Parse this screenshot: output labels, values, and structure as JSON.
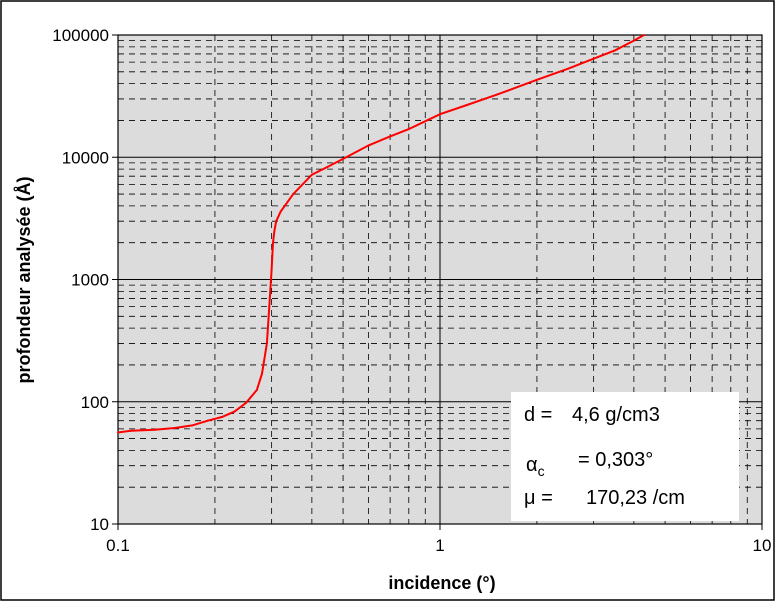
{
  "chart_data": {
    "type": "line",
    "xlabel": "incidence (°)",
    "ylabel": "profondeur analysée (Å)",
    "x_scale": "log",
    "y_scale": "log",
    "xlim": [
      0.1,
      10
    ],
    "ylim": [
      10,
      100000
    ],
    "x_ticks": [
      "0.1",
      "1",
      "10"
    ],
    "y_ticks": [
      "10",
      "100",
      "1000",
      "10000",
      "100000"
    ],
    "grid": true,
    "series": [
      {
        "color": "#ff0000",
        "x": [
          0.1,
          0.11,
          0.13,
          0.15,
          0.17,
          0.19,
          0.21,
          0.23,
          0.25,
          0.27,
          0.28,
          0.29,
          0.295,
          0.3,
          0.303,
          0.306,
          0.31,
          0.32,
          0.35,
          0.4,
          0.45,
          0.5,
          0.6,
          0.7,
          0.8,
          1.0,
          1.2,
          1.5,
          2.0,
          2.5,
          3.0,
          3.5,
          4.0,
          4.3
        ],
        "y": [
          56,
          58,
          59,
          61,
          64,
          70,
          75,
          83,
          98,
          125,
          170,
          300,
          600,
          1200,
          2000,
          2500,
          3000,
          3600,
          5000,
          7200,
          8400,
          9700,
          12500,
          14800,
          17000,
          22500,
          26500,
          32500,
          43000,
          53000,
          64000,
          75000,
          90000,
          100000
        ]
      }
    ],
    "annotations": {
      "density": {
        "label": "d =",
        "value": "4,6 g/cm3"
      },
      "critical_angle": {
        "label": "α",
        "subscript": "c",
        "value": "= 0,303°"
      },
      "mu": {
        "label": "μ =",
        "value": "170,23 /cm"
      }
    },
    "colors": {
      "plot_background": "#dcdcdc",
      "line": "#ff0000",
      "grid": "#000000"
    }
  }
}
